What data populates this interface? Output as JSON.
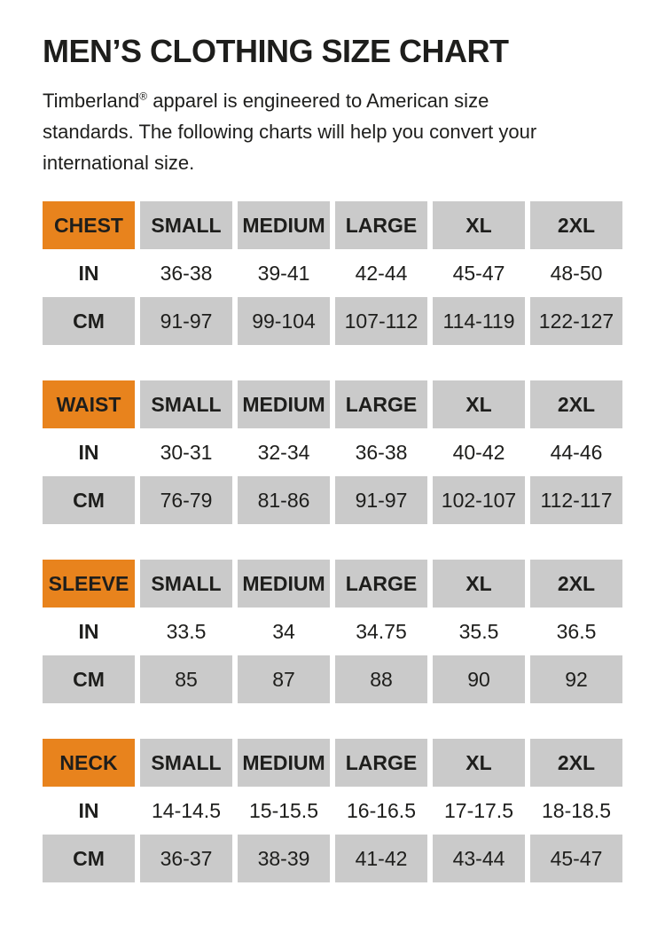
{
  "header": {
    "title": "MEN’S CLOTHING SIZE CHART"
  },
  "intro": {
    "line1_brand": "Timberland",
    "line1_reg": "®",
    "line1_rest": " apparel is engineered to American size",
    "line2": "standards. The following charts will help you convert your",
    "line3": "international size."
  },
  "colors": {
    "accent_orange": "#E8831D",
    "cell_gray": "#CACACA",
    "text_black": "#1E1E1C",
    "background": "#FFFFFF"
  },
  "tables": [
    {
      "label": "CHEST",
      "size_headers": [
        "SMALL",
        "MEDIUM",
        "LARGE",
        "XL",
        "2XL"
      ],
      "rows": [
        {
          "unit": "IN",
          "values": [
            "36-38",
            "39-41",
            "42-44",
            "45-47",
            "48-50"
          ]
        },
        {
          "unit": "CM",
          "values": [
            "91-97",
            "99-104",
            "107-112",
            "114-119",
            "122-127"
          ]
        }
      ]
    },
    {
      "label": "WAIST",
      "size_headers": [
        "SMALL",
        "MEDIUM",
        "LARGE",
        "XL",
        "2XL"
      ],
      "rows": [
        {
          "unit": "IN",
          "values": [
            "30-31",
            "32-34",
            "36-38",
            "40-42",
            "44-46"
          ]
        },
        {
          "unit": "CM",
          "values": [
            "76-79",
            "81-86",
            "91-97",
            "102-107",
            "112-117"
          ]
        }
      ]
    },
    {
      "label": "SLEEVE",
      "size_headers": [
        "SMALL",
        "MEDIUM",
        "LARGE",
        "XL",
        "2XL"
      ],
      "rows": [
        {
          "unit": "IN",
          "values": [
            "33.5",
            "34",
            "34.75",
            "35.5",
            "36.5"
          ]
        },
        {
          "unit": "CM",
          "values": [
            "85",
            "87",
            "88",
            "90",
            "92"
          ]
        }
      ]
    },
    {
      "label": "NECK",
      "size_headers": [
        "SMALL",
        "MEDIUM",
        "LARGE",
        "XL",
        "2XL"
      ],
      "rows": [
        {
          "unit": "IN",
          "values": [
            "14-14.5",
            "15-15.5",
            "16-16.5",
            "17-17.5",
            "18-18.5"
          ]
        },
        {
          "unit": "CM",
          "values": [
            "36-37",
            "38-39",
            "41-42",
            "43-44",
            "45-47"
          ]
        }
      ]
    }
  ]
}
